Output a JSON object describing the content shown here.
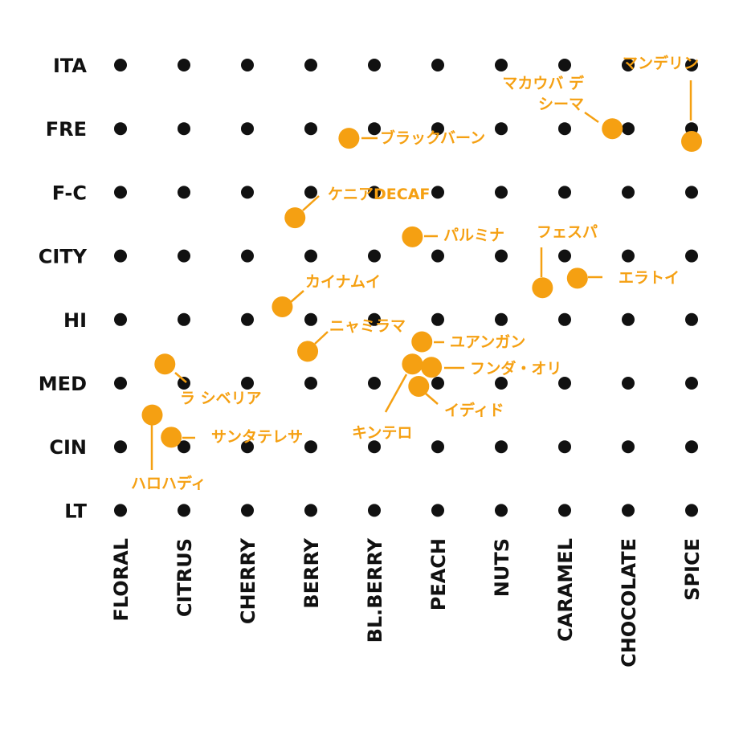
{
  "chart_data": {
    "type": "scatter",
    "title": "",
    "xlabel": "",
    "ylabel": "",
    "x_categories": [
      "FLORAL",
      "CITRUS",
      "CHERRY",
      "BERRY",
      "BL.BERRY",
      "PEACH",
      "NUTS",
      "CARAMEL",
      "CHOCOLATE",
      "SPICE"
    ],
    "y_categories": [
      "ITA",
      "FRE",
      "F-C",
      "CITY",
      "HI",
      "MED",
      "CIN",
      "LT"
    ],
    "grid": true,
    "colors": {
      "grid_dot": "#111111",
      "highlight": "#f5a012"
    },
    "points": [
      {
        "name": "マンデリン",
        "x": 9.0,
        "y": 1.2
      },
      {
        "name": "マカウバ デ シーマ",
        "x": 7.75,
        "y": 1.0
      },
      {
        "name": "ブラックバーン",
        "x": 3.6,
        "y": 1.15
      },
      {
        "name": "ケニアDECAF",
        "x": 2.75,
        "y": 2.4
      },
      {
        "name": "パルミナ",
        "x": 4.6,
        "y": 2.7
      },
      {
        "name": "フェスパ",
        "x": 6.65,
        "y": 3.5
      },
      {
        "name": "エラトイ",
        "x": 7.2,
        "y": 3.35
      },
      {
        "name": "カイナムイ",
        "x": 2.55,
        "y": 3.8
      },
      {
        "name": "ニャミラマ",
        "x": 2.95,
        "y": 4.5
      },
      {
        "name": "ユアンガン",
        "x": 4.75,
        "y": 4.35
      },
      {
        "name": "キンテロ",
        "x": 4.6,
        "y": 4.7
      },
      {
        "name": "フンダ・オリ",
        "x": 4.9,
        "y": 4.75
      },
      {
        "name": "イディド",
        "x": 4.7,
        "y": 5.05
      },
      {
        "name": "ラ シベリア",
        "x": 0.7,
        "y": 4.7
      },
      {
        "name": "ハロハディ",
        "x": 0.5,
        "y": 5.5
      },
      {
        "name": "サンタテレサ",
        "x": 0.8,
        "y": 5.85
      }
    ]
  }
}
